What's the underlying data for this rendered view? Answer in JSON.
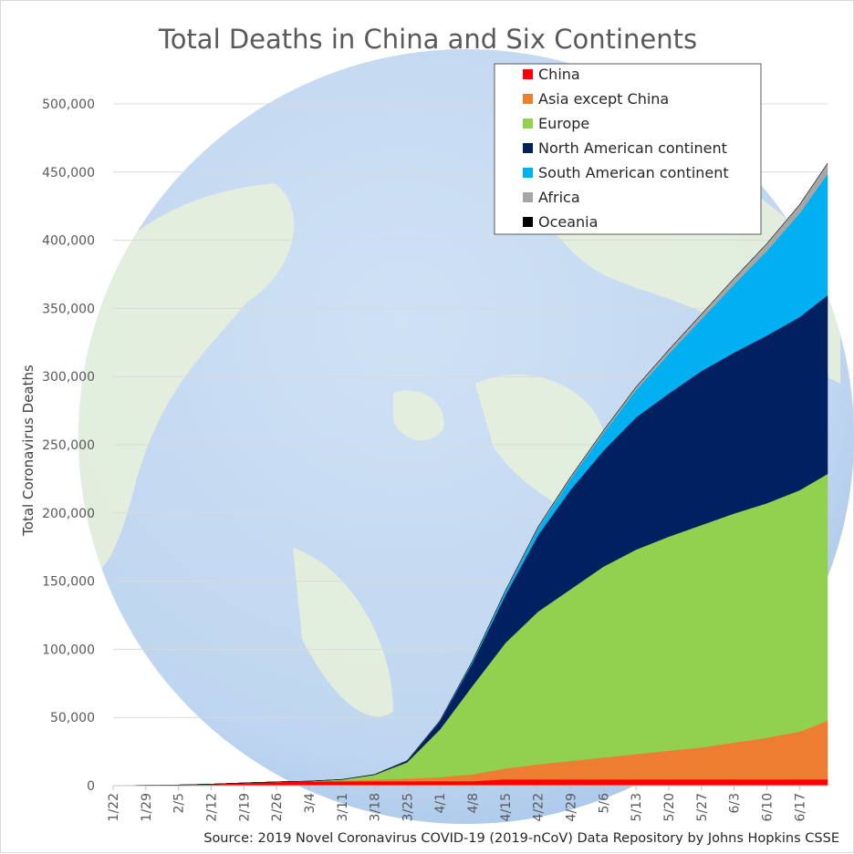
{
  "chart_data": {
    "type": "area",
    "stacked": true,
    "title": "Total Deaths in China and Six Continents",
    "ylabel": "Total Coronavirus Deaths",
    "xlabel": "",
    "source": "Source: 2019 Novel Coronavirus COVID-19 (2019-nCoV) Data Repository by Johns Hopkins CSSE",
    "ylim": [
      0,
      500000
    ],
    "y_ticks": [
      0,
      50000,
      100000,
      150000,
      200000,
      250000,
      300000,
      350000,
      400000,
      450000,
      500000
    ],
    "y_tick_labels": [
      "0",
      "50,000",
      "100,000",
      "150,000",
      "200,000",
      "250,000",
      "300,000",
      "350,000",
      "400,000",
      "450,000",
      "500,000"
    ],
    "x_tick_labels": [
      "1/22",
      "1/29",
      "2/5",
      "2/12",
      "2/19",
      "2/26",
      "3/4",
      "3/11",
      "3/18",
      "3/25",
      "4/1",
      "4/8",
      "4/15",
      "4/22",
      "4/29",
      "5/6",
      "5/13",
      "5/20",
      "5/27",
      "6/3",
      "6/10",
      "6/17"
    ],
    "x_start": "1/22",
    "x_end": "6/23",
    "grid": "horizontal",
    "legend_position": "top-right",
    "anchor_dates": [
      "1/22",
      "2/5",
      "2/12",
      "2/19",
      "2/26",
      "3/4",
      "3/11",
      "3/18",
      "3/25",
      "4/1",
      "4/8",
      "4/15",
      "4/22",
      "4/29",
      "5/6",
      "5/13",
      "5/20",
      "5/27",
      "6/3",
      "6/10",
      "6/17",
      "6/23"
    ],
    "series": [
      {
        "name": "China",
        "color": "#ff0000",
        "values": [
          17,
          500,
          1100,
          2000,
          2700,
          3000,
          3150,
          3250,
          3280,
          3310,
          3330,
          4640,
          4640,
          4640,
          4640,
          4640,
          4640,
          4640,
          4640,
          4640,
          4640,
          4640
        ]
      },
      {
        "name": "Asia except China",
        "color": "#ed7d31",
        "values": [
          0,
          0,
          5,
          15,
          60,
          150,
          500,
          1200,
          1900,
          2900,
          5000,
          8000,
          11000,
          13500,
          16000,
          18500,
          21000,
          23500,
          27000,
          30500,
          35000,
          43000
        ]
      },
      {
        "name": "Europe",
        "color": "#92d050",
        "values": [
          0,
          0,
          0,
          1,
          30,
          150,
          800,
          3500,
          12000,
          35000,
          65000,
          92000,
          112000,
          126000,
          140000,
          150000,
          157000,
          163000,
          168000,
          172000,
          177000,
          181000
        ]
      },
      {
        "name": "North American continent",
        "color": "#002060",
        "values": [
          0,
          0,
          0,
          0,
          0,
          10,
          50,
          200,
          1000,
          6000,
          17000,
          35000,
          56000,
          73000,
          85000,
          97000,
          105000,
          113000,
          118000,
          123000,
          127000,
          131000
        ]
      },
      {
        "name": "South American continent",
        "color": "#00b0f0",
        "values": [
          0,
          0,
          0,
          0,
          0,
          0,
          0,
          5,
          60,
          300,
          1000,
          2500,
          5000,
          8000,
          13000,
          20000,
          29000,
          38000,
          50000,
          62000,
          76000,
          89000
        ]
      },
      {
        "name": "Africa",
        "color": "#a6a6a6",
        "values": [
          0,
          0,
          0,
          0,
          0,
          0,
          5,
          20,
          100,
          200,
          400,
          700,
          1000,
          1300,
          1700,
          2200,
          2900,
          3600,
          4400,
          5300,
          6300,
          7700
        ]
      },
      {
        "name": "Oceania",
        "color": "#000000",
        "values": [
          0,
          0,
          0,
          0,
          0,
          0,
          0,
          5,
          20,
          40,
          60,
          80,
          100,
          110,
          115,
          120,
          125,
          128,
          129,
          130,
          130,
          130
        ]
      }
    ]
  }
}
